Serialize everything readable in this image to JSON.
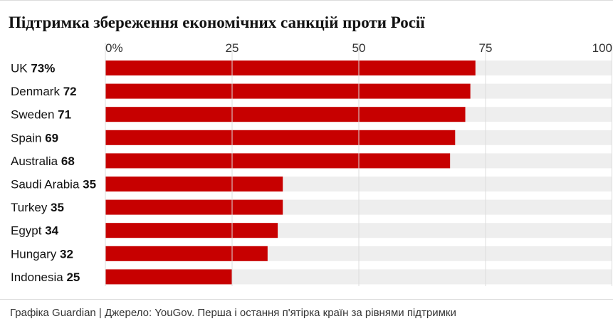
{
  "chart_data": {
    "type": "bar",
    "orientation": "horizontal",
    "title": "Підтримка збереження економічних санкцій проти Росії",
    "xlim": [
      0,
      100
    ],
    "x_ticks": [
      "0%",
      "25",
      "50",
      "75",
      "100"
    ],
    "x_tick_values": [
      0,
      25,
      50,
      75,
      100
    ],
    "categories": [
      "UK",
      "Denmark",
      "Sweden",
      "Spain",
      "Australia",
      "Saudi Arabia",
      "Turkey",
      "Egypt",
      "Hungary",
      "Indonesia"
    ],
    "values": [
      73,
      72,
      71,
      69,
      68,
      35,
      35,
      34,
      32,
      25
    ],
    "value_labels": [
      "73%",
      "72",
      "71",
      "69",
      "68",
      "35",
      "35",
      "34",
      "32",
      "25"
    ],
    "grid": true,
    "colors": {
      "bar": "#c70000",
      "track": "#eeeeee",
      "grid": "#dcdcdc"
    }
  },
  "footer": "Графіка Guardian | Джерело: YouGov. Перша і остання п'ятірка країн за рівнями підтримки"
}
